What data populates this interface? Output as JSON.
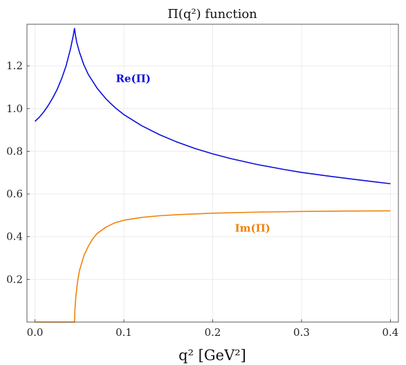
{
  "chart_data": {
    "type": "line",
    "title": "Π(q²)   function",
    "xlabel": "q² [GeV²]",
    "ylabel": "",
    "xlim": [
      -0.009,
      0.409
    ],
    "ylim": [
      0.0,
      1.395
    ],
    "xticks": [
      0.0,
      0.1,
      0.2,
      0.3,
      0.4
    ],
    "xtick_labels": [
      "0.0",
      "0.1",
      "0.2",
      "0.3",
      "0.4"
    ],
    "yticks": [
      0.2,
      0.4,
      0.6,
      0.8,
      1.0,
      1.2
    ],
    "ytick_labels": [
      "0.2",
      "0.4",
      "0.6",
      "0.8",
      "1.0",
      "1.2"
    ],
    "grid": true,
    "series": [
      {
        "name": "Re(Π)",
        "color": "#0a0ae0",
        "x": [
          0.0,
          0.005,
          0.01,
          0.015,
          0.02,
          0.025,
          0.03,
          0.035,
          0.04,
          0.043,
          0.0445,
          0.0455,
          0.047,
          0.05,
          0.055,
          0.06,
          0.07,
          0.08,
          0.09,
          0.1,
          0.12,
          0.14,
          0.16,
          0.18,
          0.2,
          0.22,
          0.25,
          0.28,
          0.3,
          0.33,
          0.36,
          0.38,
          0.4
        ],
        "y": [
          0.94,
          0.96,
          0.985,
          1.015,
          1.05,
          1.09,
          1.14,
          1.2,
          1.28,
          1.34,
          1.375,
          1.345,
          1.31,
          1.265,
          1.205,
          1.16,
          1.095,
          1.045,
          1.005,
          0.972,
          0.92,
          0.878,
          0.843,
          0.813,
          0.788,
          0.766,
          0.738,
          0.715,
          0.701,
          0.684,
          0.668,
          0.658,
          0.648
        ]
      },
      {
        "name": "Im(Π)",
        "color": "#f0820a",
        "x": [
          0.0,
          0.01,
          0.02,
          0.03,
          0.04,
          0.0445,
          0.045,
          0.046,
          0.048,
          0.05,
          0.055,
          0.06,
          0.065,
          0.07,
          0.08,
          0.09,
          0.1,
          0.12,
          0.14,
          0.16,
          0.2,
          0.25,
          0.3,
          0.35,
          0.4
        ],
        "y": [
          0.0,
          0.0,
          0.0,
          0.0,
          0.0,
          0.0,
          0.06,
          0.12,
          0.19,
          0.24,
          0.31,
          0.355,
          0.39,
          0.415,
          0.445,
          0.465,
          0.477,
          0.49,
          0.498,
          0.503,
          0.51,
          0.515,
          0.518,
          0.52,
          0.521
        ]
      }
    ],
    "annotations": [
      {
        "text": "Re(Π)",
        "x": 0.091,
        "y": 1.14,
        "color": "#0a0ae0"
      },
      {
        "text": "Im(Π)",
        "x": 0.225,
        "y": 0.44,
        "color": "#f0820a"
      }
    ]
  }
}
